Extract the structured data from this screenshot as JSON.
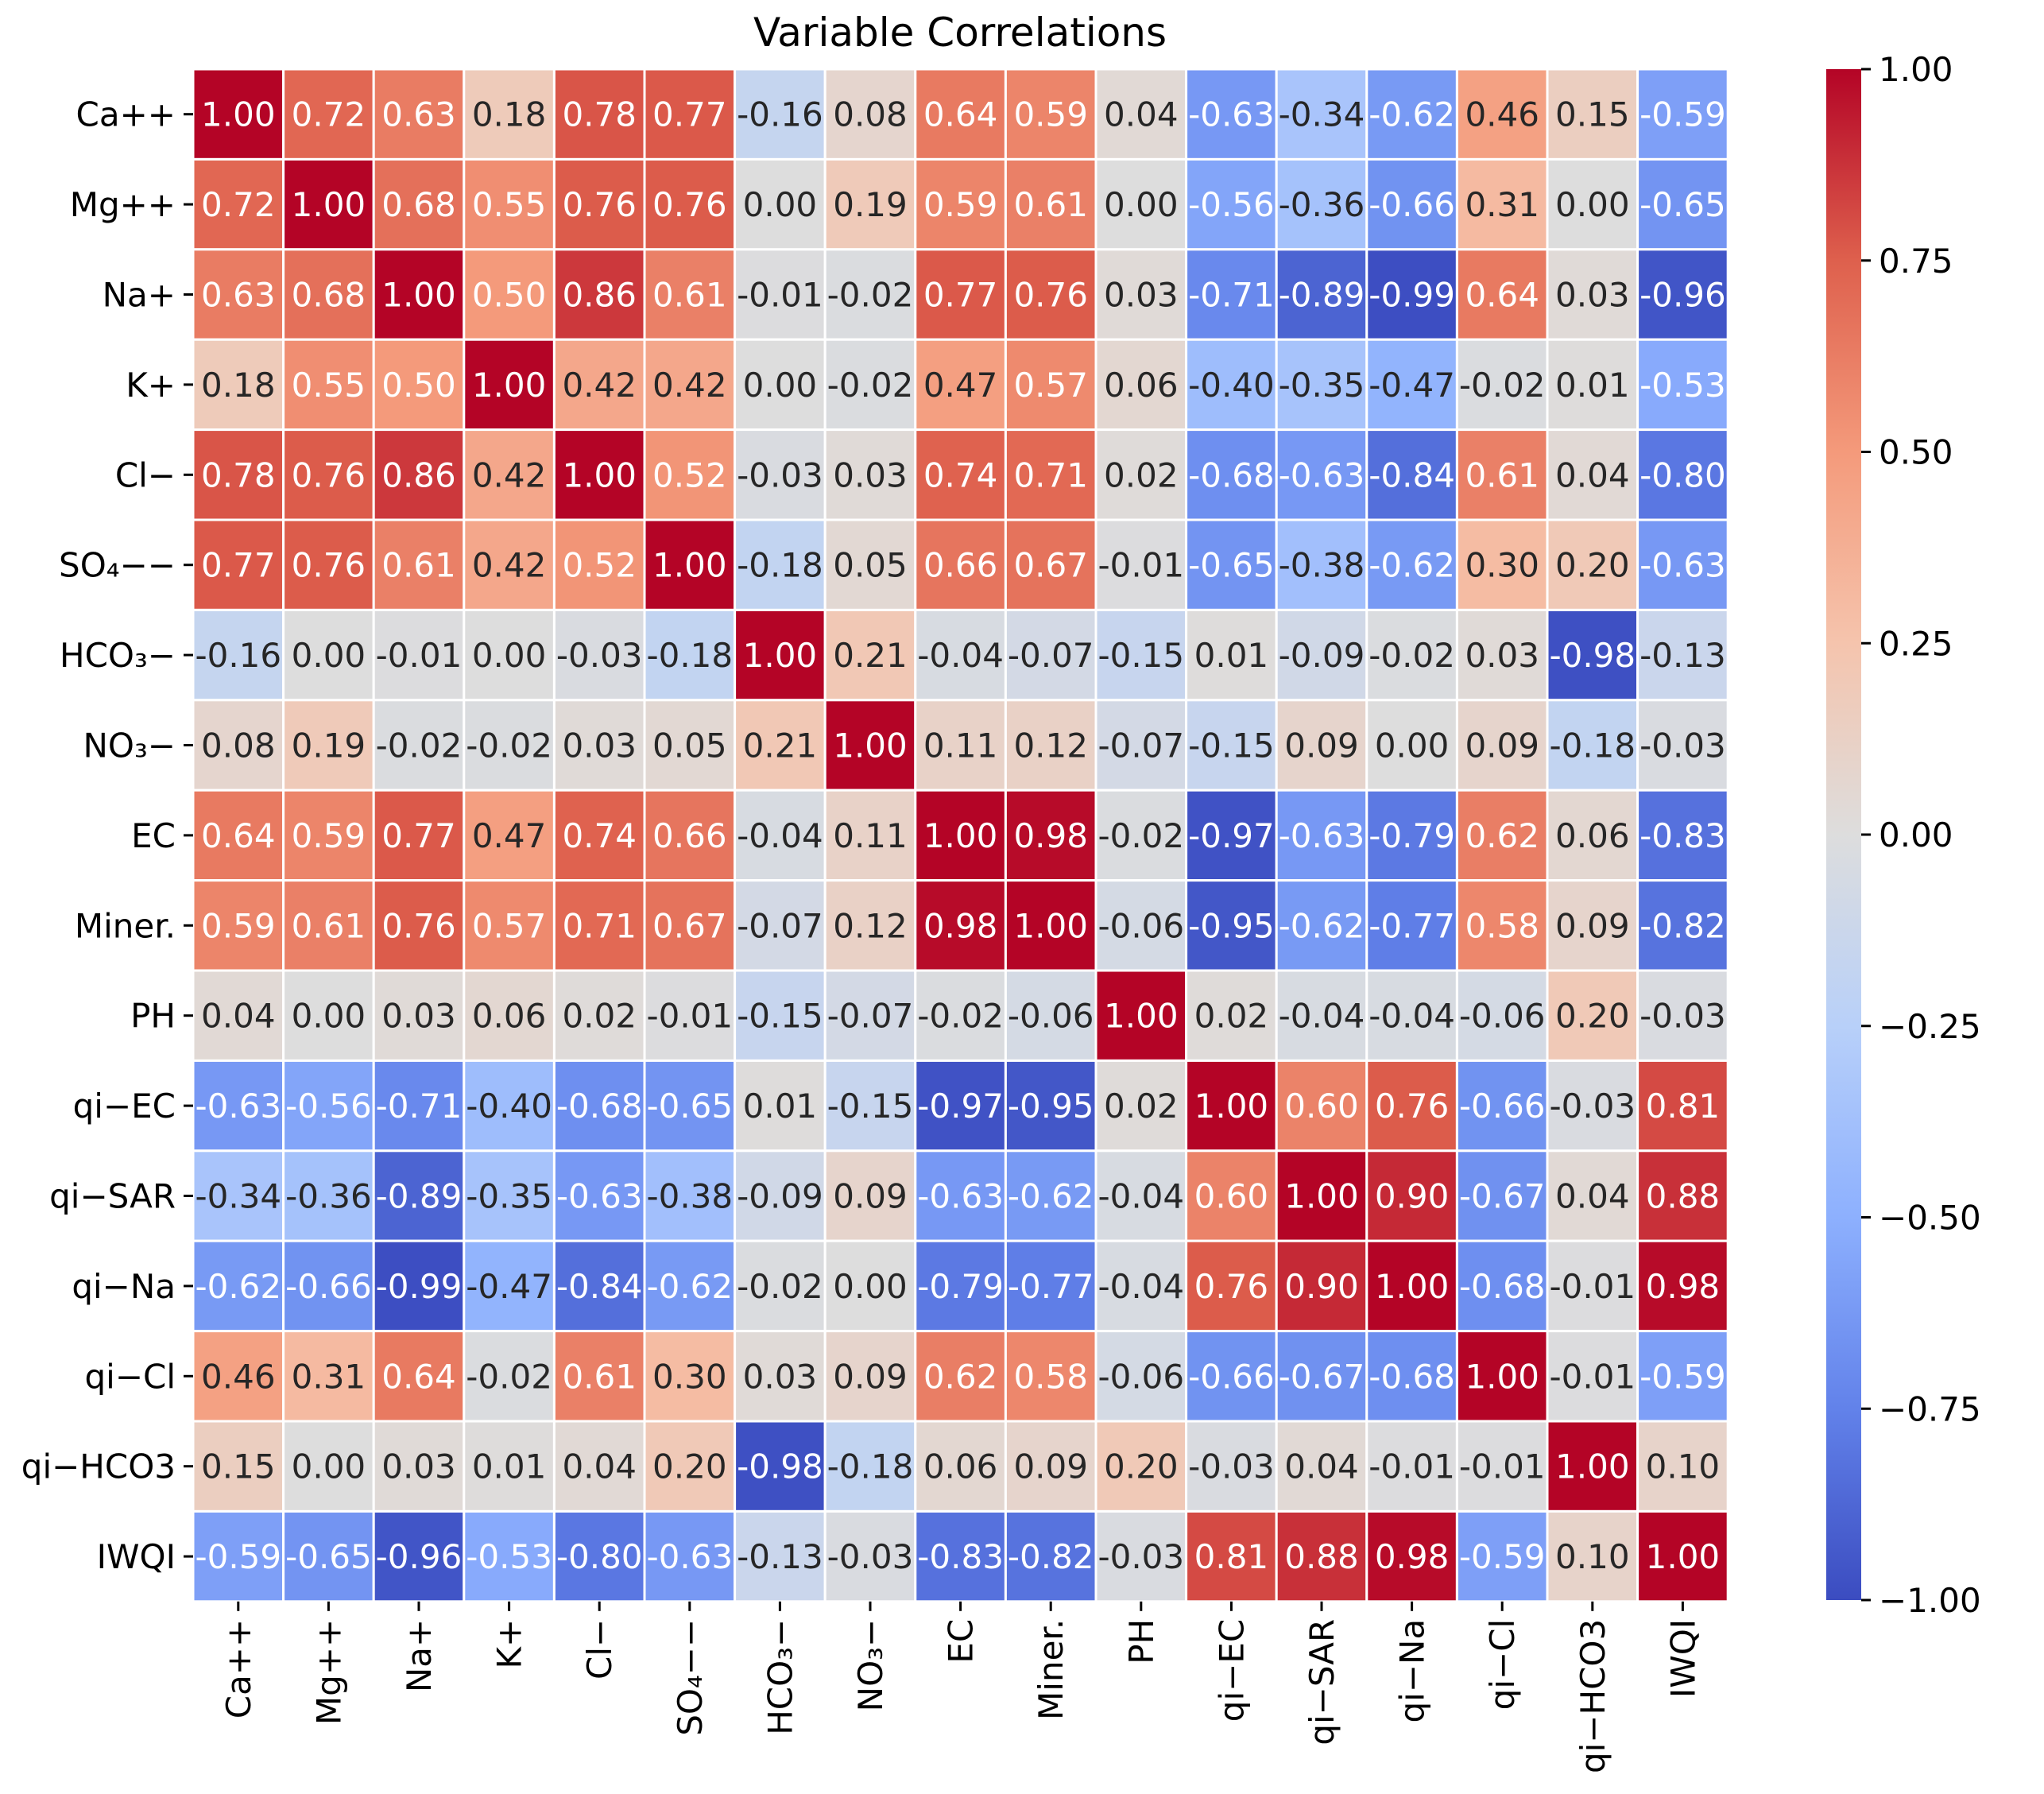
{
  "chart_data": {
    "type": "heatmap",
    "title": "Variable Correlations",
    "labels": [
      "Ca++",
      "Mg++",
      "Na+",
      "K+",
      "Cl−",
      "SO₄−−",
      "HCO₃−",
      "NO₃−",
      "EC",
      "Miner.",
      "PH",
      "qi−EC",
      "qi−SAR",
      "qi−Na",
      "qi−Cl",
      "qi−HCO3",
      "IWQI"
    ],
    "matrix": [
      [
        1.0,
        0.72,
        0.63,
        0.18,
        0.78,
        0.77,
        -0.16,
        0.08,
        0.64,
        0.59,
        0.04,
        -0.63,
        -0.34,
        -0.62,
        0.46,
        0.15,
        -0.59
      ],
      [
        0.72,
        1.0,
        0.68,
        0.55,
        0.76,
        0.76,
        0.0,
        0.19,
        0.59,
        0.61,
        -0.0,
        -0.56,
        -0.36,
        -0.66,
        0.31,
        0.0,
        -0.65
      ],
      [
        0.63,
        0.68,
        1.0,
        0.5,
        0.86,
        0.61,
        -0.01,
        -0.02,
        0.77,
        0.76,
        0.03,
        -0.71,
        -0.89,
        -0.99,
        0.64,
        0.03,
        -0.96
      ],
      [
        0.18,
        0.55,
        0.5,
        1.0,
        0.42,
        0.42,
        0.0,
        -0.02,
        0.47,
        0.57,
        0.06,
        -0.4,
        -0.35,
        -0.47,
        -0.02,
        0.01,
        -0.53
      ],
      [
        0.78,
        0.76,
        0.86,
        0.42,
        1.0,
        0.52,
        -0.03,
        0.03,
        0.74,
        0.71,
        0.02,
        -0.68,
        -0.63,
        -0.84,
        0.61,
        0.04,
        -0.8
      ],
      [
        0.77,
        0.76,
        0.61,
        0.42,
        0.52,
        1.0,
        -0.18,
        0.05,
        0.66,
        0.67,
        -0.01,
        -0.65,
        -0.38,
        -0.62,
        0.3,
        0.2,
        -0.63
      ],
      [
        -0.16,
        0.0,
        -0.01,
        0.0,
        -0.03,
        -0.18,
        1.0,
        0.21,
        -0.04,
        -0.07,
        -0.15,
        0.01,
        -0.09,
        -0.02,
        0.03,
        -0.98,
        -0.13
      ],
      [
        0.08,
        0.19,
        -0.02,
        -0.02,
        0.03,
        0.05,
        0.21,
        1.0,
        0.11,
        0.12,
        -0.07,
        -0.15,
        0.09,
        -0.0,
        0.09,
        -0.18,
        -0.03
      ],
      [
        0.64,
        0.59,
        0.77,
        0.47,
        0.74,
        0.66,
        -0.04,
        0.11,
        1.0,
        0.98,
        -0.02,
        -0.97,
        -0.63,
        -0.79,
        0.62,
        0.06,
        -0.83
      ],
      [
        0.59,
        0.61,
        0.76,
        0.57,
        0.71,
        0.67,
        -0.07,
        0.12,
        0.98,
        1.0,
        -0.06,
        -0.95,
        -0.62,
        -0.77,
        0.58,
        0.09,
        -0.82
      ],
      [
        0.04,
        -0.0,
        0.03,
        0.06,
        0.02,
        -0.01,
        -0.15,
        -0.07,
        -0.02,
        -0.06,
        1.0,
        0.02,
        -0.04,
        -0.04,
        -0.06,
        0.2,
        -0.03
      ],
      [
        -0.63,
        -0.56,
        -0.71,
        -0.4,
        -0.68,
        -0.65,
        0.01,
        -0.15,
        -0.97,
        -0.95,
        0.02,
        1.0,
        0.6,
        0.76,
        -0.66,
        -0.03,
        0.81
      ],
      [
        -0.34,
        -0.36,
        -0.89,
        -0.35,
        -0.63,
        -0.38,
        -0.09,
        0.09,
        -0.63,
        -0.62,
        -0.04,
        0.6,
        1.0,
        0.9,
        -0.67,
        0.04,
        0.88
      ],
      [
        -0.62,
        -0.66,
        -0.99,
        -0.47,
        -0.84,
        -0.62,
        -0.02,
        -0.0,
        -0.79,
        -0.77,
        -0.04,
        0.76,
        0.9,
        1.0,
        -0.68,
        -0.01,
        0.98
      ],
      [
        0.46,
        0.31,
        0.64,
        -0.02,
        0.61,
        0.3,
        0.03,
        0.09,
        0.62,
        0.58,
        -0.06,
        -0.66,
        -0.67,
        -0.68,
        1.0,
        -0.01,
        -0.59
      ],
      [
        0.15,
        0.0,
        0.03,
        0.01,
        0.04,
        0.2,
        -0.98,
        -0.18,
        0.06,
        0.09,
        0.2,
        -0.03,
        0.04,
        -0.01,
        -0.01,
        1.0,
        0.1
      ],
      [
        -0.59,
        -0.65,
        -0.96,
        -0.53,
        -0.8,
        -0.63,
        -0.13,
        -0.03,
        -0.83,
        -0.82,
        -0.03,
        0.81,
        0.88,
        0.98,
        -0.59,
        0.1,
        1.0
      ]
    ],
    "value_format": "2 decimals",
    "colormap": "coolwarm",
    "vmin": -1.0,
    "vmax": 1.0,
    "colorbar_ticks": [
      {
        "value": 1.0,
        "label": "1.00"
      },
      {
        "value": 0.75,
        "label": "0.75"
      },
      {
        "value": 0.5,
        "label": "0.50"
      },
      {
        "value": 0.25,
        "label": "0.25"
      },
      {
        "value": 0.0,
        "label": "0.00"
      },
      {
        "value": -0.25,
        "label": "−0.25"
      },
      {
        "value": -0.5,
        "label": "−0.50"
      },
      {
        "value": -0.75,
        "label": "−0.75"
      },
      {
        "value": -1.0,
        "label": "−1.00"
      }
    ],
    "colors": {
      "low": "#3b4cc0",
      "mid": "#dddddd",
      "high": "#b40426",
      "grid": "#ffffff"
    }
  }
}
